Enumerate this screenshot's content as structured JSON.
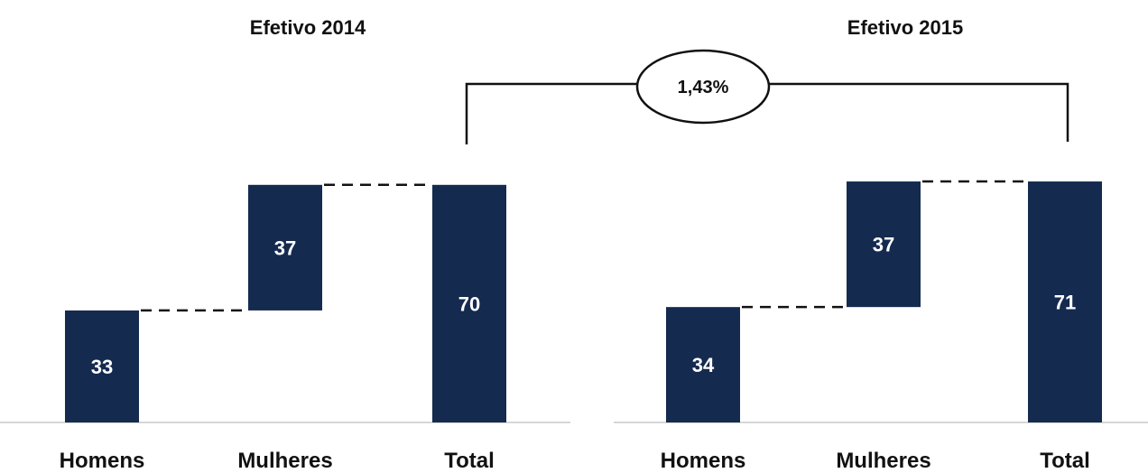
{
  "chart_data": [
    {
      "type": "bar",
      "subtype": "waterfall",
      "title": "Efetivo 2014",
      "categories": [
        "Homens",
        "Mulheres",
        "Total"
      ],
      "values": [
        33,
        37,
        70
      ],
      "ylim": [
        0,
        75
      ],
      "grid": false,
      "legend": "none"
    },
    {
      "type": "bar",
      "subtype": "waterfall",
      "title": "Efetivo 2015",
      "categories": [
        "Homens",
        "Mulheres",
        "Total"
      ],
      "values": [
        34,
        37,
        71
      ],
      "ylim": [
        0,
        75
      ],
      "grid": false,
      "legend": "none"
    }
  ],
  "comparison": {
    "label": "1,43%"
  },
  "colors": {
    "bar": "#152a4f",
    "baseline": "#c8c8c8",
    "connector": "#111111",
    "text": "#111111"
  }
}
